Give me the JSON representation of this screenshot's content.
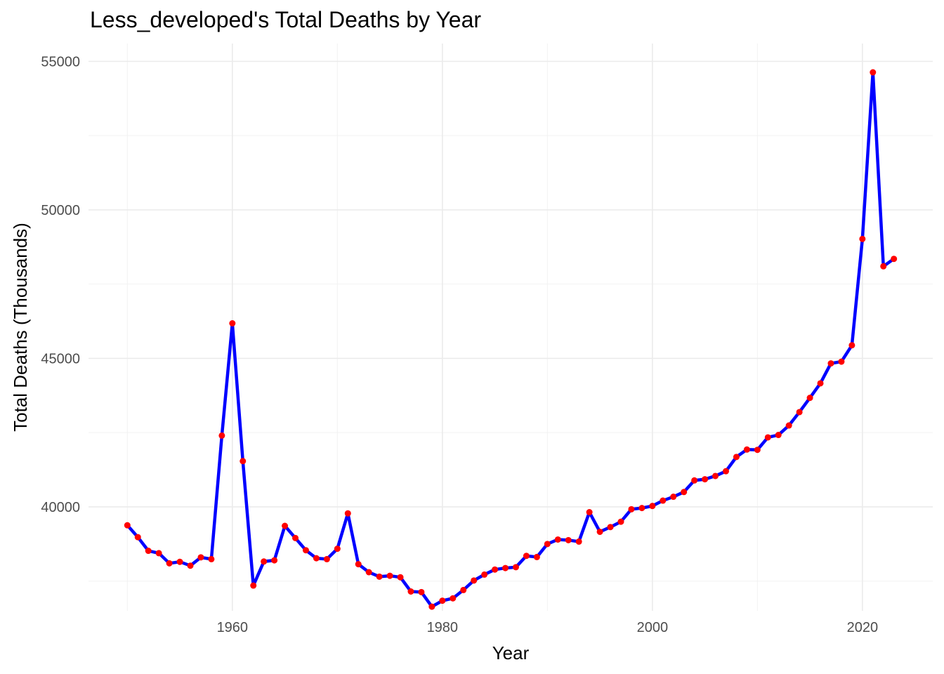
{
  "chart_data": {
    "type": "line",
    "title": "Less_developed's Total Deaths by Year",
    "xlabel": "Year",
    "ylabel": "Total Deaths (Thousands)",
    "xlim": [
      1946.3,
      2026.7
    ],
    "ylim": [
      36500,
      55600
    ],
    "x_ticks": [
      1960,
      1980,
      2000,
      2020
    ],
    "y_ticks": [
      40000,
      45000,
      50000,
      55000
    ],
    "x_minor": [
      1950,
      1970,
      1990,
      2010
    ],
    "y_minor": [
      37500,
      42500,
      47500,
      52500
    ],
    "grid": true,
    "line_color": "#0000ff",
    "point_color": "#ff0000",
    "series": [
      {
        "x": [
          1950,
          1951,
          1952,
          1953,
          1954,
          1955,
          1956,
          1957,
          1958,
          1959,
          1960,
          1961,
          1962,
          1963,
          1964,
          1965,
          1966,
          1967,
          1968,
          1969,
          1970,
          1971,
          1972,
          1973,
          1974,
          1975,
          1976,
          1977,
          1978,
          1979,
          1980,
          1981,
          1982,
          1983,
          1984,
          1985,
          1986,
          1987,
          1988,
          1989,
          1990,
          1991,
          1992,
          1993,
          1994,
          1995,
          1996,
          1997,
          1998,
          1999,
          2000,
          2001,
          2002,
          2003,
          2004,
          2005,
          2006,
          2007,
          2008,
          2009,
          2010,
          2011,
          2012,
          2013,
          2014,
          2015,
          2016,
          2017,
          2018,
          2019,
          2020,
          2021,
          2022,
          2023
        ],
        "values": [
          39380,
          38980,
          38520,
          38440,
          38100,
          38150,
          38020,
          38300,
          38240,
          42400,
          46180,
          41540,
          37350,
          38160,
          38200,
          39360,
          38950,
          38540,
          38270,
          38240,
          38590,
          39780,
          38070,
          37800,
          37650,
          37680,
          37630,
          37150,
          37130,
          36640,
          36840,
          36920,
          37200,
          37520,
          37720,
          37890,
          37940,
          37970,
          38350,
          38310,
          38750,
          38900,
          38880,
          38830,
          39820,
          39160,
          39320,
          39500,
          39920,
          39960,
          40030,
          40210,
          40340,
          40500,
          40890,
          40930,
          41040,
          41200,
          41680,
          41930,
          41920,
          42340,
          42420,
          42740,
          43190,
          43670,
          44160,
          44830,
          44890,
          45440,
          49020,
          54630,
          48100,
          48350
        ]
      }
    ]
  }
}
